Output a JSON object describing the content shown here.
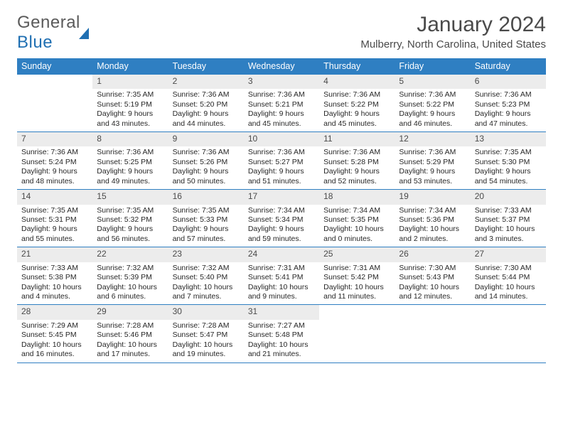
{
  "logo": {
    "word1": "General",
    "word2": "Blue"
  },
  "title": "January 2024",
  "subtitle": "Mulberry, North Carolina, United States",
  "colors": {
    "header_bg": "#2f7fc2",
    "header_text": "#ffffff",
    "date_bg": "#ececec",
    "text": "#272727",
    "rule": "#2f7fc2",
    "logo_gray": "#5a5a5a",
    "logo_blue": "#1f6fb2"
  },
  "day_headers": [
    "Sunday",
    "Monday",
    "Tuesday",
    "Wednesday",
    "Thursday",
    "Friday",
    "Saturday"
  ],
  "weeks": [
    [
      {
        "date": "",
        "empty": true
      },
      {
        "date": "1",
        "sunrise": "Sunrise: 7:35 AM",
        "sunset": "Sunset: 5:19 PM",
        "d1": "Daylight: 9 hours",
        "d2": "and 43 minutes."
      },
      {
        "date": "2",
        "sunrise": "Sunrise: 7:36 AM",
        "sunset": "Sunset: 5:20 PM",
        "d1": "Daylight: 9 hours",
        "d2": "and 44 minutes."
      },
      {
        "date": "3",
        "sunrise": "Sunrise: 7:36 AM",
        "sunset": "Sunset: 5:21 PM",
        "d1": "Daylight: 9 hours",
        "d2": "and 45 minutes."
      },
      {
        "date": "4",
        "sunrise": "Sunrise: 7:36 AM",
        "sunset": "Sunset: 5:22 PM",
        "d1": "Daylight: 9 hours",
        "d2": "and 45 minutes."
      },
      {
        "date": "5",
        "sunrise": "Sunrise: 7:36 AM",
        "sunset": "Sunset: 5:22 PM",
        "d1": "Daylight: 9 hours",
        "d2": "and 46 minutes."
      },
      {
        "date": "6",
        "sunrise": "Sunrise: 7:36 AM",
        "sunset": "Sunset: 5:23 PM",
        "d1": "Daylight: 9 hours",
        "d2": "and 47 minutes."
      }
    ],
    [
      {
        "date": "7",
        "sunrise": "Sunrise: 7:36 AM",
        "sunset": "Sunset: 5:24 PM",
        "d1": "Daylight: 9 hours",
        "d2": "and 48 minutes."
      },
      {
        "date": "8",
        "sunrise": "Sunrise: 7:36 AM",
        "sunset": "Sunset: 5:25 PM",
        "d1": "Daylight: 9 hours",
        "d2": "and 49 minutes."
      },
      {
        "date": "9",
        "sunrise": "Sunrise: 7:36 AM",
        "sunset": "Sunset: 5:26 PM",
        "d1": "Daylight: 9 hours",
        "d2": "and 50 minutes."
      },
      {
        "date": "10",
        "sunrise": "Sunrise: 7:36 AM",
        "sunset": "Sunset: 5:27 PM",
        "d1": "Daylight: 9 hours",
        "d2": "and 51 minutes."
      },
      {
        "date": "11",
        "sunrise": "Sunrise: 7:36 AM",
        "sunset": "Sunset: 5:28 PM",
        "d1": "Daylight: 9 hours",
        "d2": "and 52 minutes."
      },
      {
        "date": "12",
        "sunrise": "Sunrise: 7:36 AM",
        "sunset": "Sunset: 5:29 PM",
        "d1": "Daylight: 9 hours",
        "d2": "and 53 minutes."
      },
      {
        "date": "13",
        "sunrise": "Sunrise: 7:35 AM",
        "sunset": "Sunset: 5:30 PM",
        "d1": "Daylight: 9 hours",
        "d2": "and 54 minutes."
      }
    ],
    [
      {
        "date": "14",
        "sunrise": "Sunrise: 7:35 AM",
        "sunset": "Sunset: 5:31 PM",
        "d1": "Daylight: 9 hours",
        "d2": "and 55 minutes."
      },
      {
        "date": "15",
        "sunrise": "Sunrise: 7:35 AM",
        "sunset": "Sunset: 5:32 PM",
        "d1": "Daylight: 9 hours",
        "d2": "and 56 minutes."
      },
      {
        "date": "16",
        "sunrise": "Sunrise: 7:35 AM",
        "sunset": "Sunset: 5:33 PM",
        "d1": "Daylight: 9 hours",
        "d2": "and 57 minutes."
      },
      {
        "date": "17",
        "sunrise": "Sunrise: 7:34 AM",
        "sunset": "Sunset: 5:34 PM",
        "d1": "Daylight: 9 hours",
        "d2": "and 59 minutes."
      },
      {
        "date": "18",
        "sunrise": "Sunrise: 7:34 AM",
        "sunset": "Sunset: 5:35 PM",
        "d1": "Daylight: 10 hours",
        "d2": "and 0 minutes."
      },
      {
        "date": "19",
        "sunrise": "Sunrise: 7:34 AM",
        "sunset": "Sunset: 5:36 PM",
        "d1": "Daylight: 10 hours",
        "d2": "and 2 minutes."
      },
      {
        "date": "20",
        "sunrise": "Sunrise: 7:33 AM",
        "sunset": "Sunset: 5:37 PM",
        "d1": "Daylight: 10 hours",
        "d2": "and 3 minutes."
      }
    ],
    [
      {
        "date": "21",
        "sunrise": "Sunrise: 7:33 AM",
        "sunset": "Sunset: 5:38 PM",
        "d1": "Daylight: 10 hours",
        "d2": "and 4 minutes."
      },
      {
        "date": "22",
        "sunrise": "Sunrise: 7:32 AM",
        "sunset": "Sunset: 5:39 PM",
        "d1": "Daylight: 10 hours",
        "d2": "and 6 minutes."
      },
      {
        "date": "23",
        "sunrise": "Sunrise: 7:32 AM",
        "sunset": "Sunset: 5:40 PM",
        "d1": "Daylight: 10 hours",
        "d2": "and 7 minutes."
      },
      {
        "date": "24",
        "sunrise": "Sunrise: 7:31 AM",
        "sunset": "Sunset: 5:41 PM",
        "d1": "Daylight: 10 hours",
        "d2": "and 9 minutes."
      },
      {
        "date": "25",
        "sunrise": "Sunrise: 7:31 AM",
        "sunset": "Sunset: 5:42 PM",
        "d1": "Daylight: 10 hours",
        "d2": "and 11 minutes."
      },
      {
        "date": "26",
        "sunrise": "Sunrise: 7:30 AM",
        "sunset": "Sunset: 5:43 PM",
        "d1": "Daylight: 10 hours",
        "d2": "and 12 minutes."
      },
      {
        "date": "27",
        "sunrise": "Sunrise: 7:30 AM",
        "sunset": "Sunset: 5:44 PM",
        "d1": "Daylight: 10 hours",
        "d2": "and 14 minutes."
      }
    ],
    [
      {
        "date": "28",
        "sunrise": "Sunrise: 7:29 AM",
        "sunset": "Sunset: 5:45 PM",
        "d1": "Daylight: 10 hours",
        "d2": "and 16 minutes."
      },
      {
        "date": "29",
        "sunrise": "Sunrise: 7:28 AM",
        "sunset": "Sunset: 5:46 PM",
        "d1": "Daylight: 10 hours",
        "d2": "and 17 minutes."
      },
      {
        "date": "30",
        "sunrise": "Sunrise: 7:28 AM",
        "sunset": "Sunset: 5:47 PM",
        "d1": "Daylight: 10 hours",
        "d2": "and 19 minutes."
      },
      {
        "date": "31",
        "sunrise": "Sunrise: 7:27 AM",
        "sunset": "Sunset: 5:48 PM",
        "d1": "Daylight: 10 hours",
        "d2": "and 21 minutes."
      },
      {
        "date": "",
        "empty": true
      },
      {
        "date": "",
        "empty": true
      },
      {
        "date": "",
        "empty": true
      }
    ]
  ]
}
